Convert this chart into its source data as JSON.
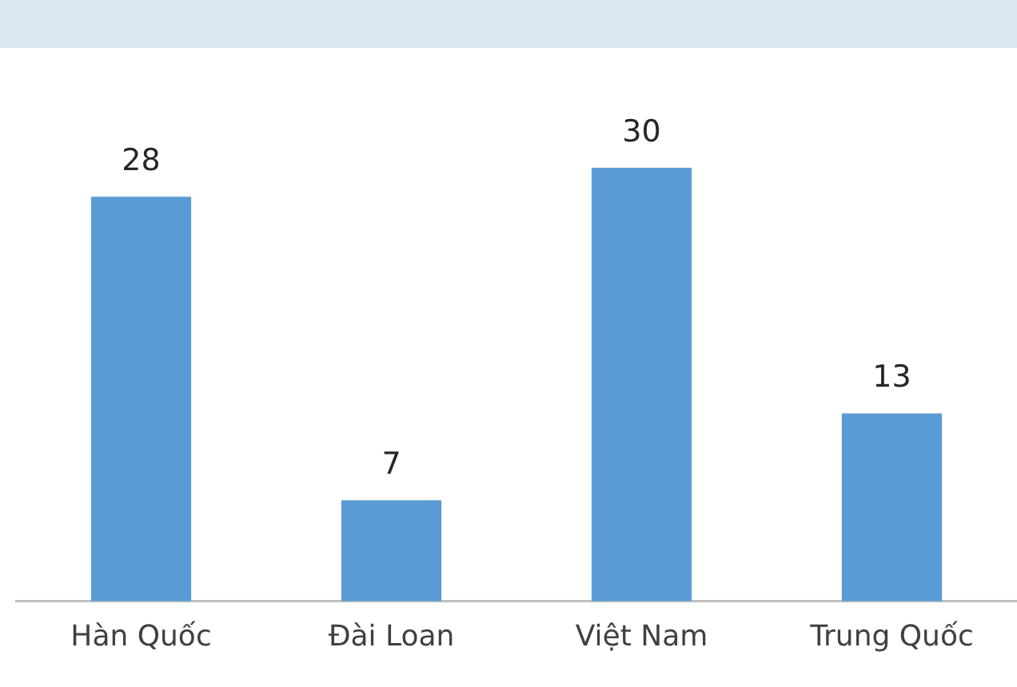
{
  "chart_data": {
    "type": "bar",
    "categories": [
      "Hàn Quốc",
      "Đài Loan",
      "Việt Nam",
      "Trung Quốc"
    ],
    "values": [
      28,
      7,
      30,
      13
    ],
    "color": "#5b9bd5",
    "data_labels": true,
    "grid": false,
    "legend": false
  }
}
